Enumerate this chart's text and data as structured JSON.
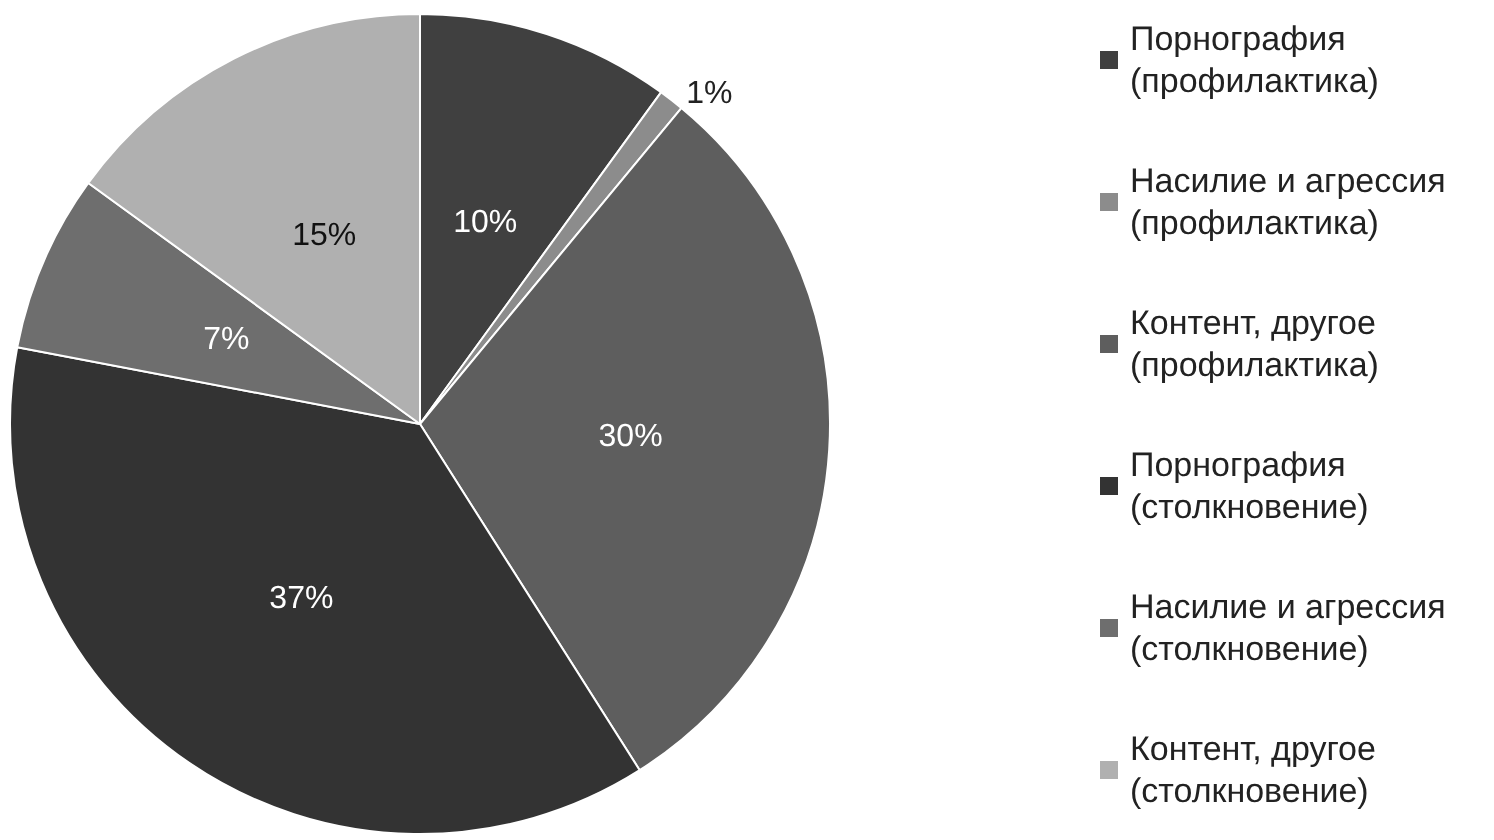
{
  "chart_data": {
    "type": "pie",
    "categories": [
      "Порнография\n(профилактика)",
      "Насилие и агрессия\n(профилактика)",
      "Контент, другое\n(профилактика)",
      "Порнография\n(столкновение)",
      "Насилие и агрессия\n(столкновение)",
      "Контент, другое\n(столкновение)"
    ],
    "values": [
      10,
      1,
      30,
      37,
      7,
      15
    ],
    "colors": [
      "#404040",
      "#8c8c8c",
      "#5e5e5e",
      "#333333",
      "#6e6e6e",
      "#b0b0b0"
    ],
    "value_labels": [
      "10%",
      "1%",
      "30%",
      "37%",
      "7%",
      "15%"
    ],
    "legend": "right"
  }
}
